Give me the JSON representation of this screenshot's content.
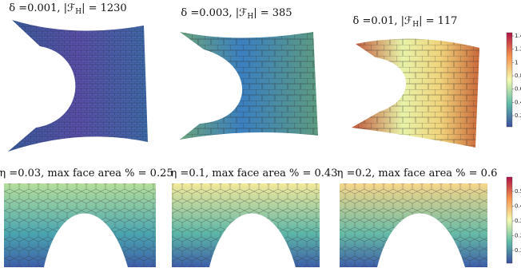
{
  "panels_top": [
    {
      "prefix": "δ =0.001, |ℱ",
      "sub": "H",
      "suffix": "| = 1230"
    },
    {
      "prefix": "δ =0.003, |ℱ",
      "sub": "H",
      "suffix": "| = 385"
    },
    {
      "prefix": "δ =0.01, |ℱ",
      "sub": "H",
      "suffix": "| = 117"
    }
  ],
  "panels_bottom": [
    {
      "title": "η =0.03, max face area % = 0.25"
    },
    {
      "title": "η =0.1, max face area % = 0.43"
    },
    {
      "title": "η =0.2, max face area % = 0.6"
    }
  ],
  "colorbar_top": {
    "ticks": [
      "1.4",
      "1.2",
      "1",
      "0.8",
      "0.6",
      "0.4",
      "0.2"
    ]
  },
  "colorbar_bottom": {
    "ticks": [
      "0.5",
      "0.4",
      "0.3",
      "0.2",
      "0.1"
    ]
  }
}
